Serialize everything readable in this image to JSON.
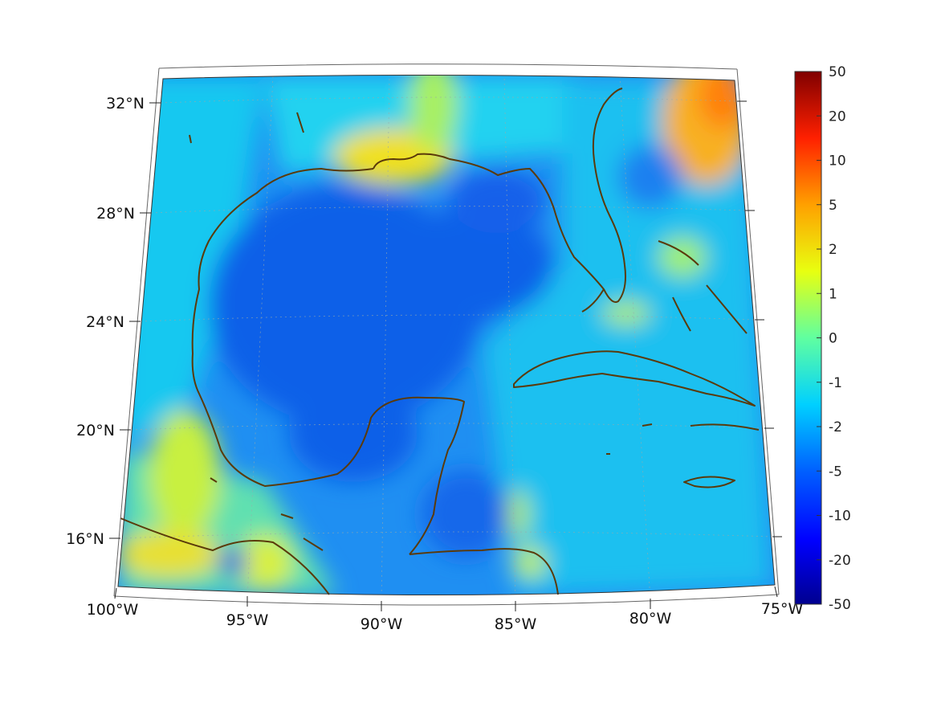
{
  "map": {
    "projection": "conic",
    "lat_labels": [
      "32°N",
      "28°N",
      "24°N",
      "20°N",
      "16°N"
    ],
    "lon_labels": [
      "100°W",
      "95°W",
      "90°W",
      "85°W",
      "80°W",
      "75°W"
    ],
    "coastline_color": "#5a3a0a",
    "grid": true,
    "regions": [
      "Gulf of Mexico",
      "Caribbean Sea",
      "Cuba",
      "Florida",
      "Yucatán Peninsula",
      "Bahamas",
      "Jamaica"
    ]
  },
  "colorbar": {
    "colormap": "jet",
    "ticks": [
      "50",
      "20",
      "10",
      "5",
      "2",
      "1",
      "0",
      "-1",
      "-2",
      "-5",
      "-10",
      "-20",
      "-50"
    ],
    "colors": [
      "#00008f",
      "#0000ff",
      "#0080ff",
      "#00ffff",
      "#80ff80",
      "#ffff00",
      "#ff8000",
      "#ff0000",
      "#800000"
    ]
  }
}
